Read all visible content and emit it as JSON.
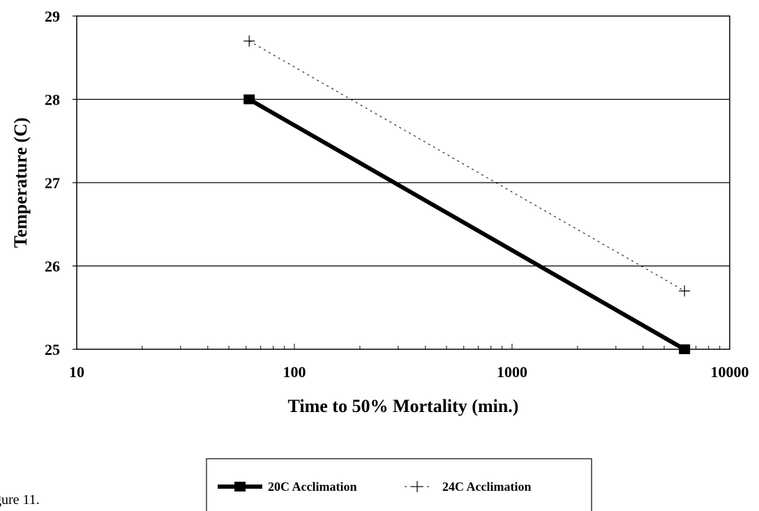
{
  "caption": "gure 11.",
  "chart_data": {
    "type": "line",
    "xscale": "log",
    "xlim": [
      10,
      10000
    ],
    "ylim": [
      25,
      29
    ],
    "xticks": [
      "10",
      "100",
      "1000",
      "10000"
    ],
    "yticks": [
      "25",
      "26",
      "27",
      "28",
      "29"
    ],
    "xlabel": "Time to 50% Mortality (min.)",
    "ylabel": "Temperature (C)",
    "grid": "horizontal",
    "legend_position": "bottom",
    "series": [
      {
        "name": "20C Acclimation",
        "x": [
          62,
          6200
        ],
        "y": [
          28.0,
          25.0
        ],
        "color": "#000000",
        "style": "solid-thick",
        "marker": "square"
      },
      {
        "name": "24C Acclimation",
        "x": [
          62,
          6200
        ],
        "y": [
          28.7,
          25.7
        ],
        "color": "#000000",
        "style": "dashed-thin",
        "marker": "plus"
      }
    ]
  }
}
